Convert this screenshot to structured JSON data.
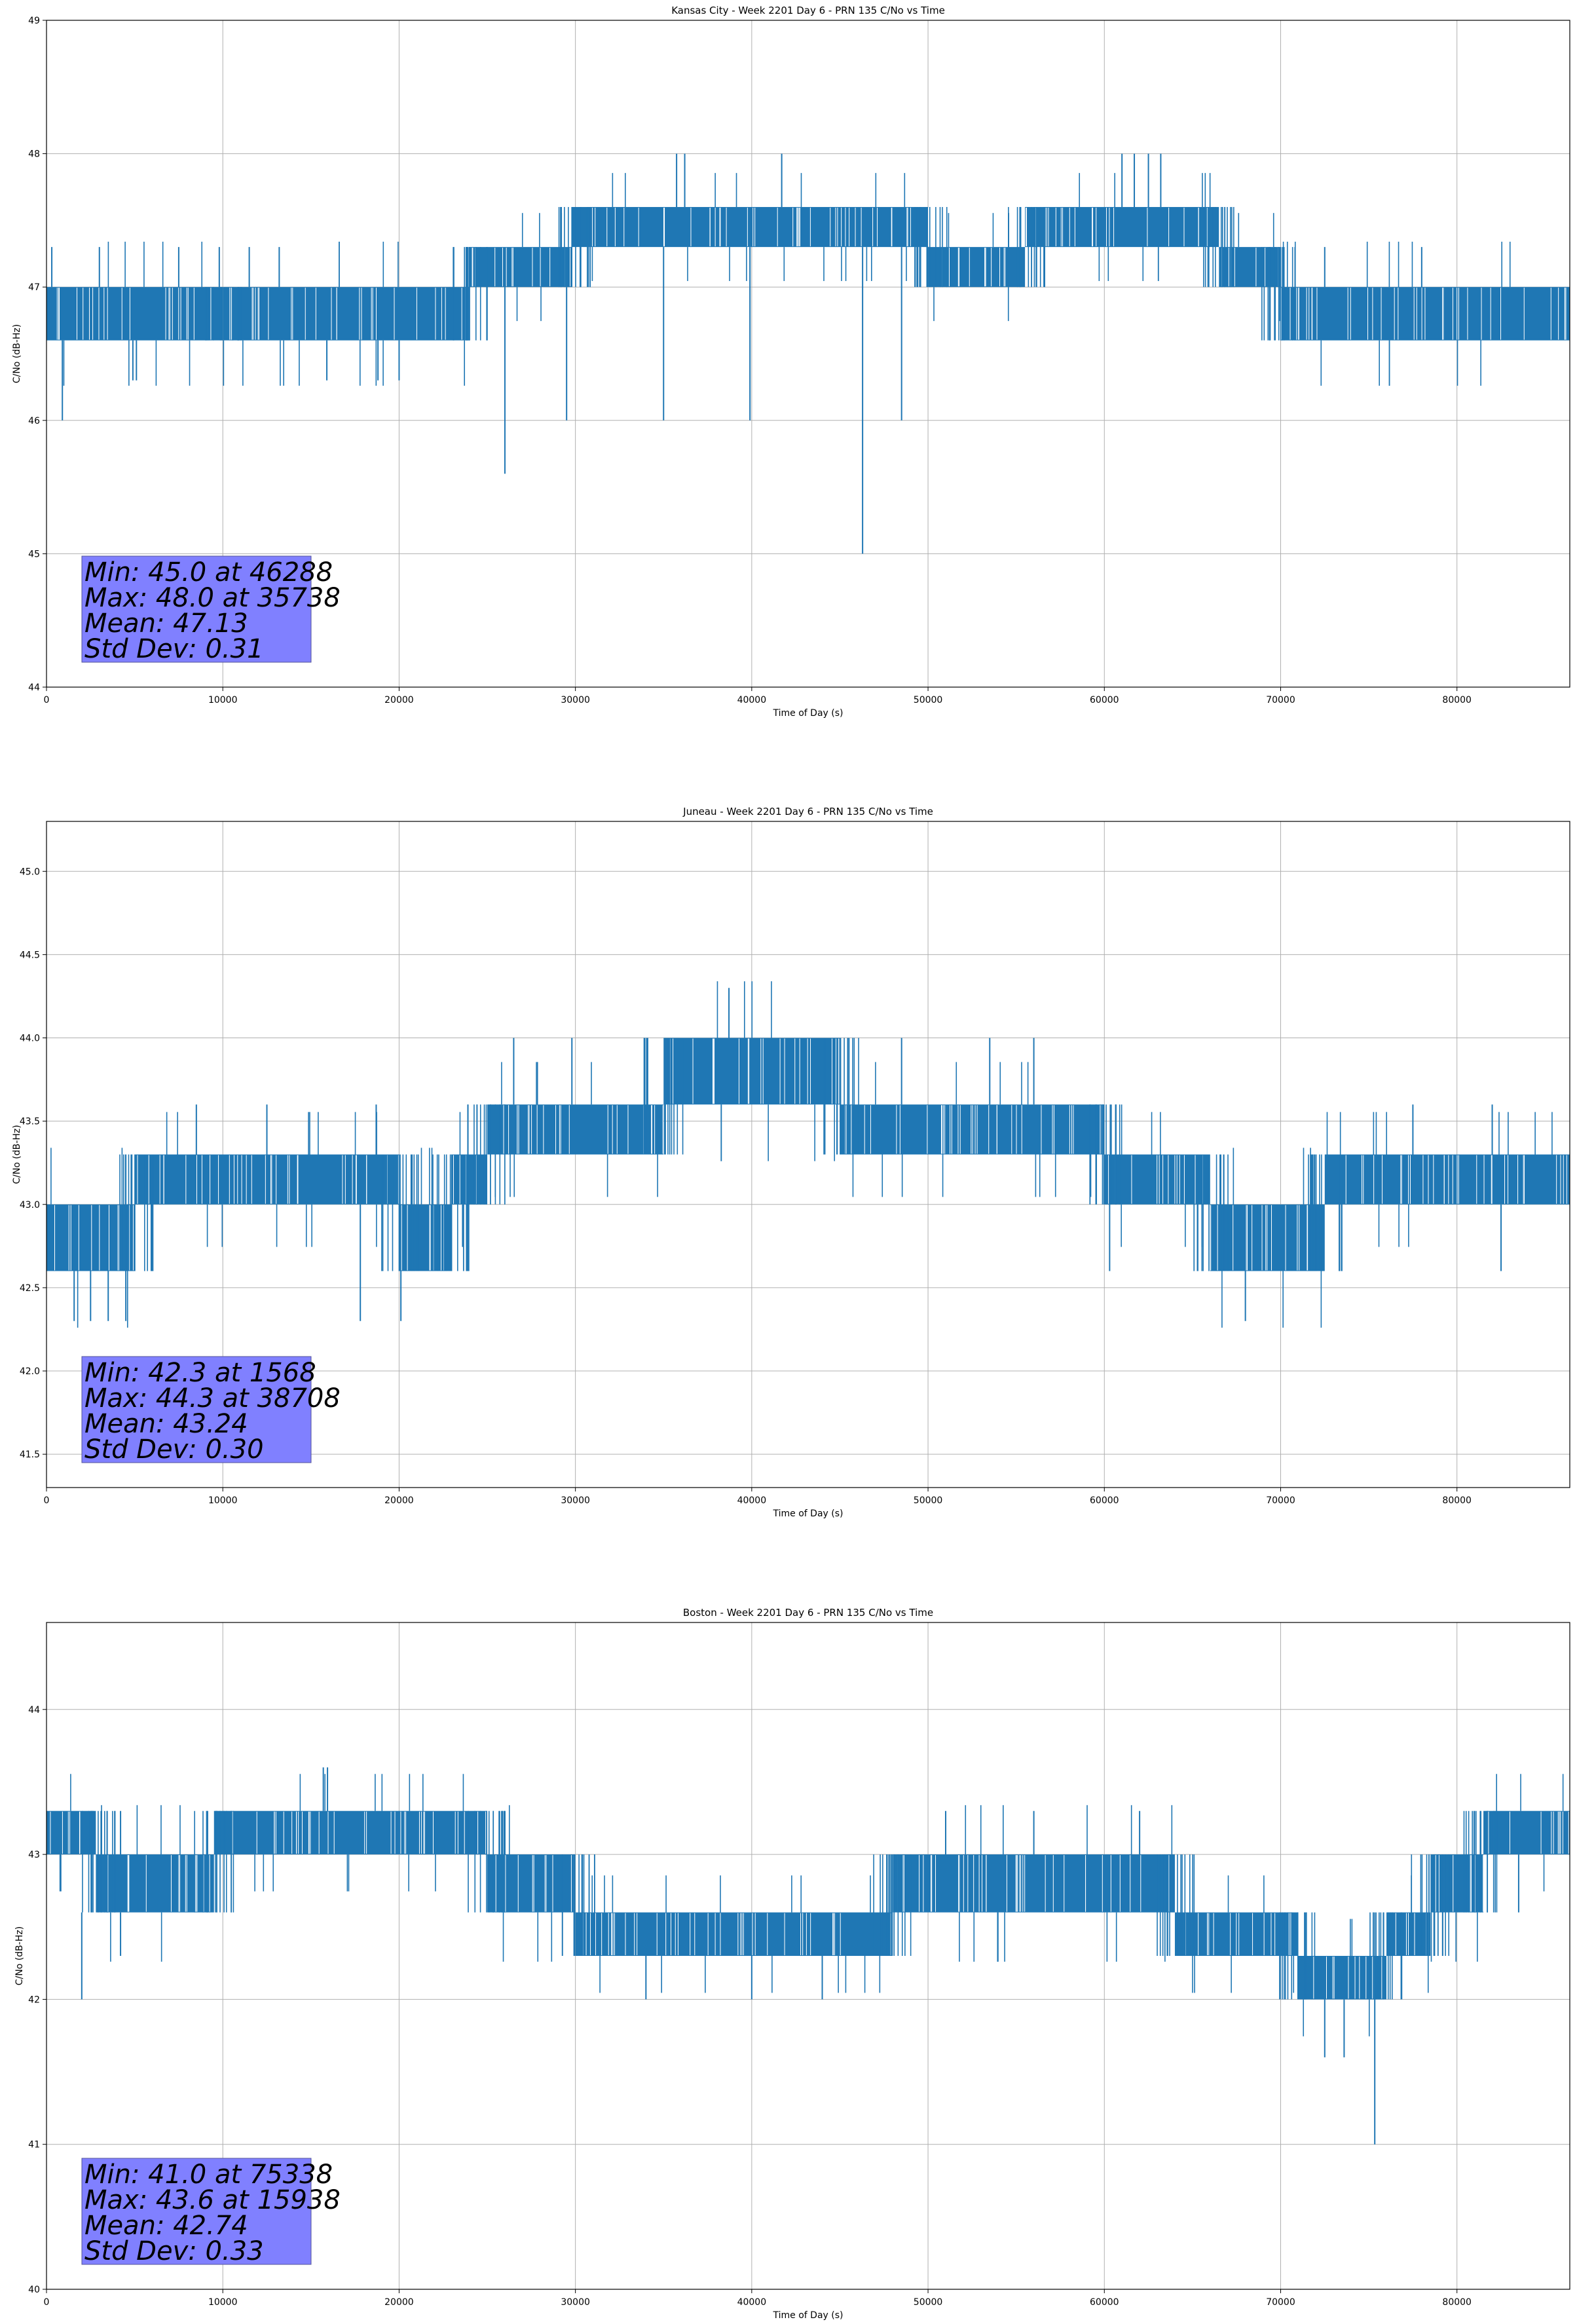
{
  "chart_data": [
    {
      "type": "line",
      "title": "Kansas City - Week 2201 Day 6 - PRN 135 C/No vs Time",
      "xlabel": "Time of Day (s)",
      "ylabel": "C/No (dB-Hz)",
      "xlim": [
        0,
        86400
      ],
      "ylim": [
        44,
        49
      ],
      "xticks": [
        0,
        10000,
        20000,
        30000,
        40000,
        50000,
        60000,
        70000,
        80000
      ],
      "yticks": [
        44,
        45,
        46,
        47,
        48,
        49
      ],
      "grid": true,
      "line_color": "#1f77b4",
      "stats": [
        "Min: 45.0 at 46288",
        "Max: 48.0 at 35738",
        "Mean: 47.13",
        "Std Dev: 0.31"
      ],
      "bands": [
        {
          "x": [
            0,
            10000
          ],
          "lo": 46.6,
          "hi": 47.0
        },
        {
          "x": [
            10000,
            24000
          ],
          "lo": 46.6,
          "hi": 47.0
        },
        {
          "x": [
            24000,
            29800
          ],
          "lo": 47.0,
          "hi": 47.3
        },
        {
          "x": [
            29800,
            50000
          ],
          "lo": 47.3,
          "hi": 47.6
        },
        {
          "x": [
            50000,
            55500
          ],
          "lo": 47.0,
          "hi": 47.3
        },
        {
          "x": [
            55500,
            66500
          ],
          "lo": 47.3,
          "hi": 47.6
        },
        {
          "x": [
            66500,
            70000
          ],
          "lo": 47.0,
          "hi": 47.3
        },
        {
          "x": [
            70000,
            86400
          ],
          "lo": 46.6,
          "hi": 47.0
        }
      ],
      "spikes": [
        {
          "x": 300,
          "y1": 47.0,
          "y2": 47.3
        },
        {
          "x": 900,
          "y1": 46.6,
          "y2": 46.0
        },
        {
          "x": 4900,
          "y1": 46.6,
          "y2": 46.3
        },
        {
          "x": 5100,
          "y1": 46.6,
          "y2": 46.3
        },
        {
          "x": 3000,
          "y1": 47.0,
          "y2": 47.3
        },
        {
          "x": 7500,
          "y1": 47.0,
          "y2": 47.3
        },
        {
          "x": 9800,
          "y1": 47.0,
          "y2": 47.3
        },
        {
          "x": 11500,
          "y1": 47.0,
          "y2": 47.3
        },
        {
          "x": 13200,
          "y1": 47.0,
          "y2": 47.3
        },
        {
          "x": 15900,
          "y1": 46.6,
          "y2": 46.3
        },
        {
          "x": 18800,
          "y1": 46.6,
          "y2": 46.3
        },
        {
          "x": 20000,
          "y1": 46.6,
          "y2": 46.3
        },
        {
          "x": 26000,
          "y1": 47.0,
          "y2": 45.6
        },
        {
          "x": 29500,
          "y1": 47.0,
          "y2": 46.0
        },
        {
          "x": 35000,
          "y1": 47.3,
          "y2": 46.0
        },
        {
          "x": 35738,
          "y1": 47.6,
          "y2": 48.0
        },
        {
          "x": 36200,
          "y1": 47.6,
          "y2": 48.0
        },
        {
          "x": 39900,
          "y1": 47.3,
          "y2": 46.0
        },
        {
          "x": 41700,
          "y1": 47.6,
          "y2": 48.0
        },
        {
          "x": 46288,
          "y1": 47.3,
          "y2": 45.0
        },
        {
          "x": 48500,
          "y1": 47.3,
          "y2": 46.0
        },
        {
          "x": 61000,
          "y1": 47.6,
          "y2": 48.0
        },
        {
          "x": 61700,
          "y1": 47.6,
          "y2": 48.0
        },
        {
          "x": 62500,
          "y1": 47.6,
          "y2": 48.0
        },
        {
          "x": 63200,
          "y1": 47.6,
          "y2": 48.0
        },
        {
          "x": 72500,
          "y1": 47.0,
          "y2": 47.3
        },
        {
          "x": 78000,
          "y1": 47.0,
          "y2": 47.3
        }
      ]
    },
    {
      "type": "line",
      "title": "Juneau - Week 2201 Day 6 - PRN 135 C/No vs Time",
      "xlabel": "Time of Day (s)",
      "ylabel": "C/No (dB-Hz)",
      "xlim": [
        0,
        86400
      ],
      "ylim": [
        41.3,
        45.3
      ],
      "xticks": [
        0,
        10000,
        20000,
        30000,
        40000,
        50000,
        60000,
        70000,
        80000
      ],
      "yticks": [
        41.5,
        42.0,
        42.5,
        43.0,
        43.5,
        44.0,
        44.5,
        45.0
      ],
      "grid": true,
      "line_color": "#1f77b4",
      "stats": [
        "Min: 42.3 at 1568",
        "Max: 44.3 at 38708",
        "Mean: 43.24",
        "Std Dev: 0.30"
      ],
      "bands": [
        {
          "x": [
            0,
            5000
          ],
          "lo": 42.6,
          "hi": 43.0
        },
        {
          "x": [
            5000,
            20000
          ],
          "lo": 43.0,
          "hi": 43.3
        },
        {
          "x": [
            20000,
            23000
          ],
          "lo": 42.6,
          "hi": 43.0
        },
        {
          "x": [
            23000,
            25000
          ],
          "lo": 43.0,
          "hi": 43.3
        },
        {
          "x": [
            25000,
            35000
          ],
          "lo": 43.3,
          "hi": 43.6
        },
        {
          "x": [
            35000,
            45000
          ],
          "lo": 43.6,
          "hi": 44.0
        },
        {
          "x": [
            45000,
            60000
          ],
          "lo": 43.3,
          "hi": 43.6
        },
        {
          "x": [
            60000,
            66000
          ],
          "lo": 43.0,
          "hi": 43.3
        },
        {
          "x": [
            66000,
            72500
          ],
          "lo": 42.6,
          "hi": 43.0
        },
        {
          "x": [
            72500,
            86400
          ],
          "lo": 43.0,
          "hi": 43.3
        }
      ],
      "spikes": [
        {
          "x": 1568,
          "y1": 42.6,
          "y2": 42.3
        },
        {
          "x": 2500,
          "y1": 42.6,
          "y2": 42.3
        },
        {
          "x": 3500,
          "y1": 42.6,
          "y2": 42.3
        },
        {
          "x": 4500,
          "y1": 42.6,
          "y2": 42.3
        },
        {
          "x": 8500,
          "y1": 43.3,
          "y2": 43.6
        },
        {
          "x": 12500,
          "y1": 43.3,
          "y2": 43.6
        },
        {
          "x": 17800,
          "y1": 43.0,
          "y2": 42.3
        },
        {
          "x": 18700,
          "y1": 43.3,
          "y2": 43.6
        },
        {
          "x": 20100,
          "y1": 42.6,
          "y2": 42.3
        },
        {
          "x": 26500,
          "y1": 43.6,
          "y2": 44.0
        },
        {
          "x": 29800,
          "y1": 43.6,
          "y2": 44.0
        },
        {
          "x": 38708,
          "y1": 44.0,
          "y2": 44.3
        },
        {
          "x": 48500,
          "y1": 43.6,
          "y2": 44.0
        },
        {
          "x": 53500,
          "y1": 43.6,
          "y2": 44.0
        },
        {
          "x": 56000,
          "y1": 43.6,
          "y2": 44.0
        },
        {
          "x": 60300,
          "y1": 43.0,
          "y2": 42.6
        },
        {
          "x": 68000,
          "y1": 42.6,
          "y2": 42.3
        },
        {
          "x": 77500,
          "y1": 43.3,
          "y2": 43.6
        },
        {
          "x": 82000,
          "y1": 43.3,
          "y2": 43.6
        },
        {
          "x": 82500,
          "y1": 43.0,
          "y2": 42.6
        }
      ]
    },
    {
      "type": "line",
      "title": "Boston - Week 2201 Day 6 - PRN 135 C/No vs Time",
      "xlabel": "Time of Day (s)",
      "ylabel": "C/No (dB-Hz)",
      "xlim": [
        0,
        86400
      ],
      "ylim": [
        40,
        44.6
      ],
      "xticks": [
        0,
        10000,
        20000,
        30000,
        40000,
        50000,
        60000,
        70000,
        80000
      ],
      "yticks": [
        40,
        41,
        42,
        43,
        44
      ],
      "grid": true,
      "line_color": "#1f77b4",
      "stats": [
        "Min: 41.0 at 75338",
        "Max: 43.6 at 15938",
        "Mean: 42.74",
        "Std Dev: 0.33"
      ],
      "bands": [
        {
          "x": [
            0,
            2800
          ],
          "lo": 43.0,
          "hi": 43.3
        },
        {
          "x": [
            2800,
            9500
          ],
          "lo": 42.6,
          "hi": 43.0
        },
        {
          "x": [
            9500,
            25000
          ],
          "lo": 43.0,
          "hi": 43.3
        },
        {
          "x": [
            25000,
            30000
          ],
          "lo": 42.6,
          "hi": 43.0
        },
        {
          "x": [
            30000,
            48000
          ],
          "lo": 42.3,
          "hi": 42.6
        },
        {
          "x": [
            48000,
            64000
          ],
          "lo": 42.6,
          "hi": 43.0
        },
        {
          "x": [
            64000,
            71000
          ],
          "lo": 42.3,
          "hi": 42.6
        },
        {
          "x": [
            71000,
            76000
          ],
          "lo": 42.0,
          "hi": 42.3
        },
        {
          "x": [
            76000,
            78500
          ],
          "lo": 42.3,
          "hi": 42.6
        },
        {
          "x": [
            78500,
            81500
          ],
          "lo": 42.6,
          "hi": 43.0
        },
        {
          "x": [
            81500,
            86400
          ],
          "lo": 43.0,
          "hi": 43.3
        }
      ],
      "spikes": [
        {
          "x": 2000,
          "y1": 42.6,
          "y2": 42.0
        },
        {
          "x": 4200,
          "y1": 43.0,
          "y2": 43.3
        },
        {
          "x": 4200,
          "y1": 42.6,
          "y2": 42.3
        },
        {
          "x": 15700,
          "y1": 43.3,
          "y2": 43.6
        },
        {
          "x": 15938,
          "y1": 43.3,
          "y2": 43.6
        },
        {
          "x": 26000,
          "y1": 43.0,
          "y2": 43.3
        },
        {
          "x": 34000,
          "y1": 42.3,
          "y2": 42.0
        },
        {
          "x": 40000,
          "y1": 42.3,
          "y2": 42.0
        },
        {
          "x": 44000,
          "y1": 42.3,
          "y2": 42.0
        },
        {
          "x": 51000,
          "y1": 43.0,
          "y2": 43.3
        },
        {
          "x": 56000,
          "y1": 43.0,
          "y2": 43.3
        },
        {
          "x": 62000,
          "y1": 43.0,
          "y2": 43.3
        },
        {
          "x": 72500,
          "y1": 42.0,
          "y2": 41.6
        },
        {
          "x": 73600,
          "y1": 42.0,
          "y2": 41.6
        },
        {
          "x": 75338,
          "y1": 42.0,
          "y2": 41.0
        },
        {
          "x": 83500,
          "y1": 43.0,
          "y2": 42.6
        }
      ]
    }
  ]
}
